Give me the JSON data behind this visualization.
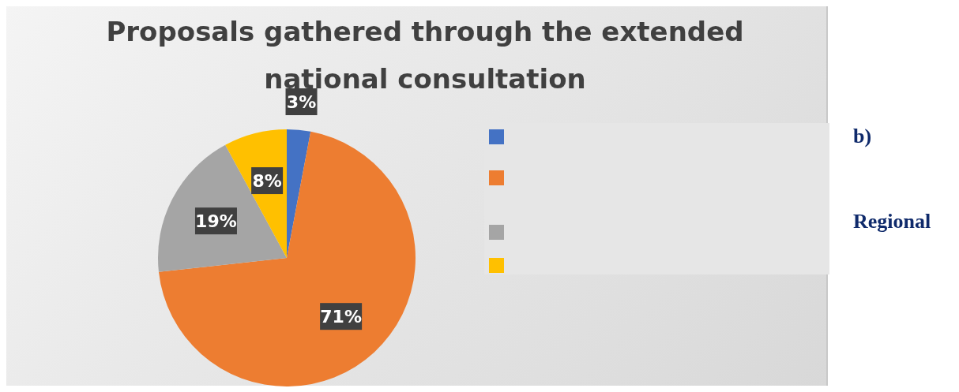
{
  "chart_data": {
    "type": "pie",
    "title": "Proposals gathered through the extended national consultation",
    "categories": [
      null,
      null,
      null,
      null
    ],
    "values": [
      3,
      71,
      19,
      8
    ],
    "colors": [
      "#4472c4",
      "#ed7d31",
      "#a5a5a5",
      "#ffc000"
    ],
    "value_labels": [
      "3%",
      "71%",
      "19%",
      "8%"
    ],
    "annotations": [
      "b)",
      "Regional"
    ]
  }
}
